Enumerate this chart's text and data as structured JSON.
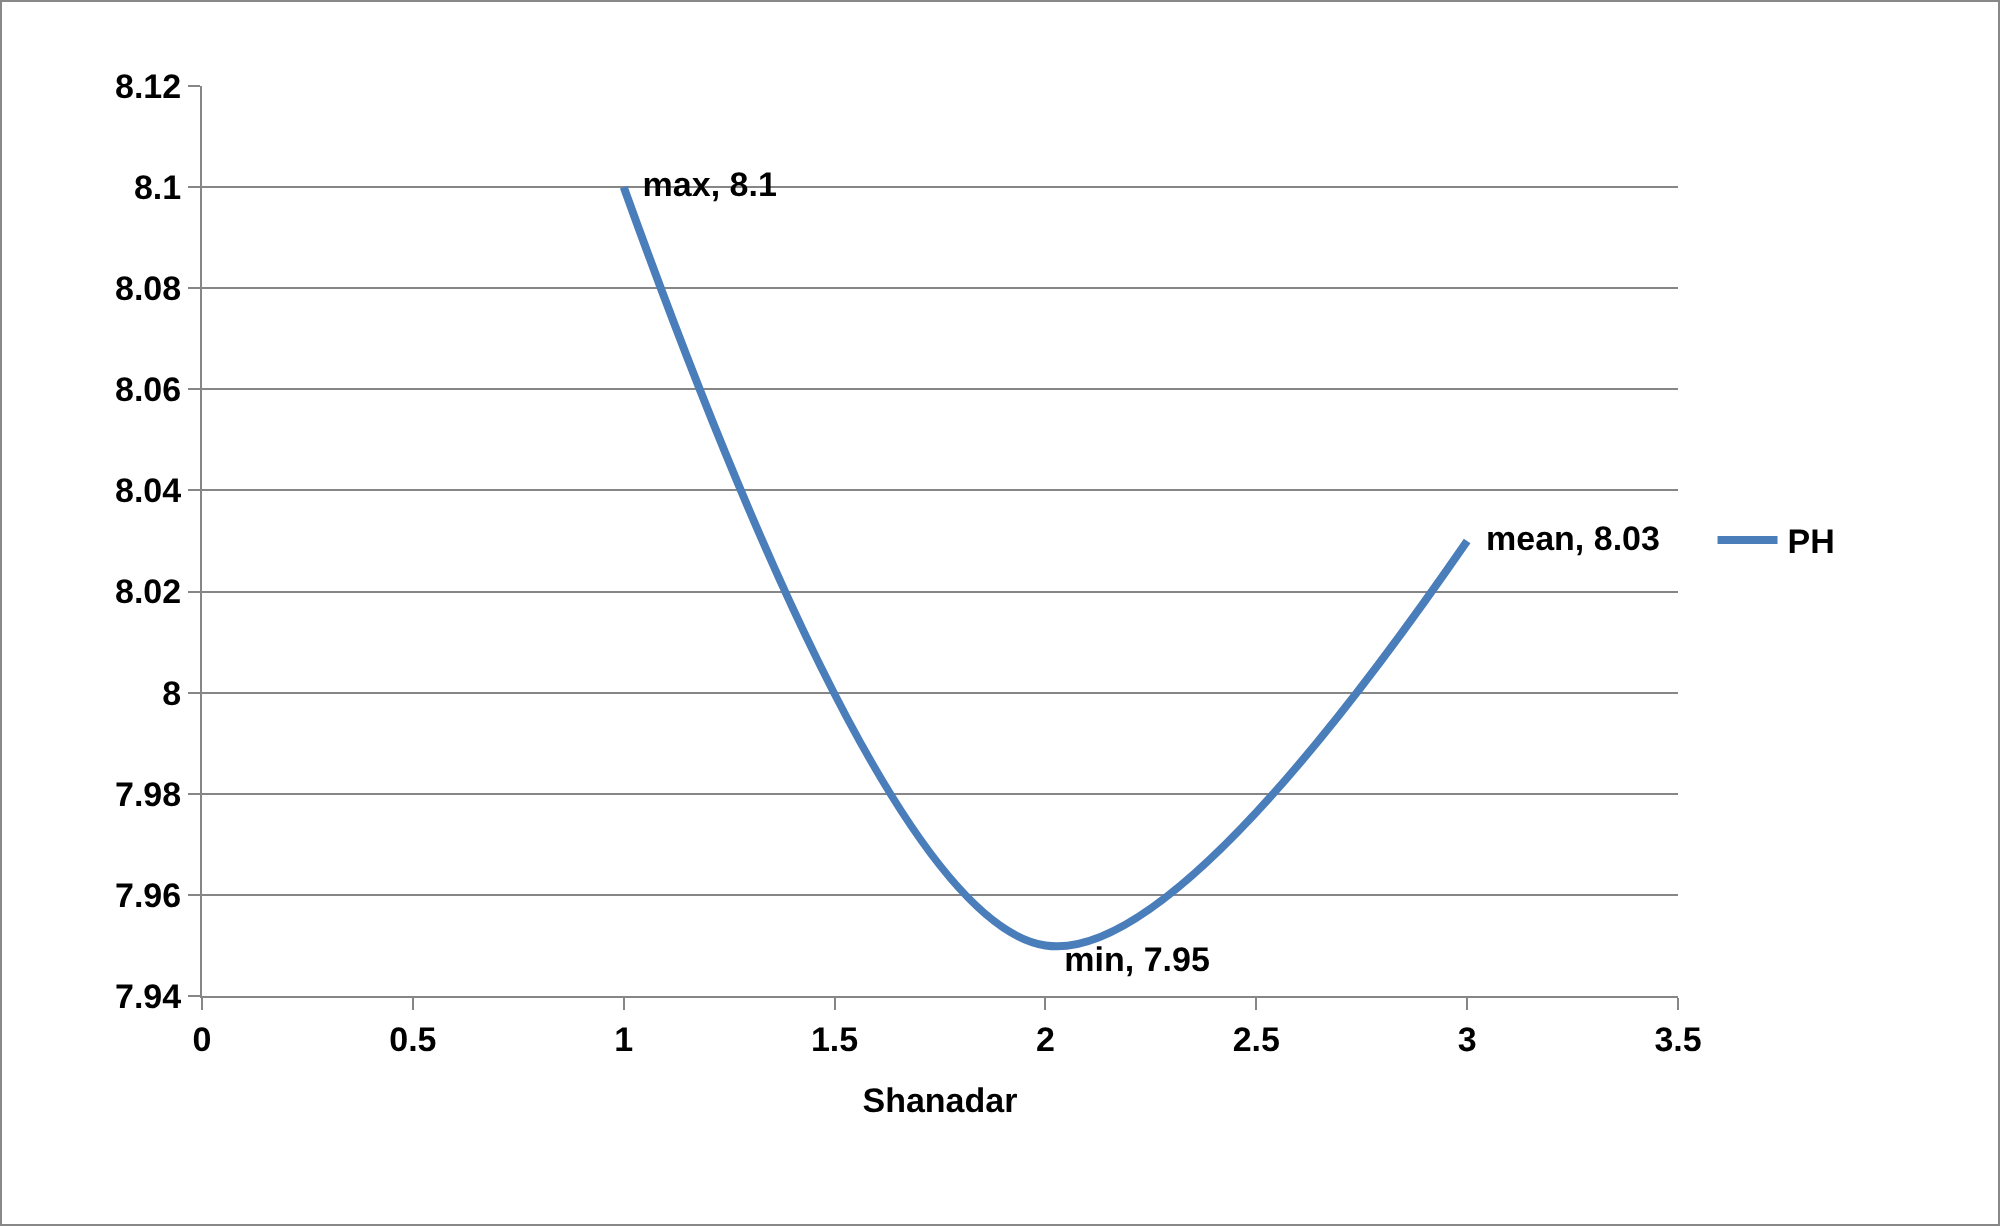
{
  "chart_data": {
    "type": "line",
    "xlabel": "Shanadar",
    "x": [
      1,
      2,
      3
    ],
    "series": [
      {
        "name": "PH",
        "color": "#4a7ebb",
        "values": [
          8.1,
          7.95,
          8.03
        ],
        "value_labels": [
          "max, 8.1",
          "min, 7.95",
          "mean, 8.03"
        ]
      }
    ],
    "xlim": [
      0,
      3.5
    ],
    "xticks": [
      0,
      0.5,
      1,
      1.5,
      2,
      2.5,
      3,
      3.5
    ],
    "ylim": [
      7.94,
      8.12
    ],
    "yticks": [
      7.94,
      7.96,
      7.98,
      8,
      8.02,
      8.04,
      8.06,
      8.08,
      8.1,
      8.12
    ],
    "grid": "y",
    "legend": "right",
    "marker": "none",
    "line_style": "solid"
  }
}
